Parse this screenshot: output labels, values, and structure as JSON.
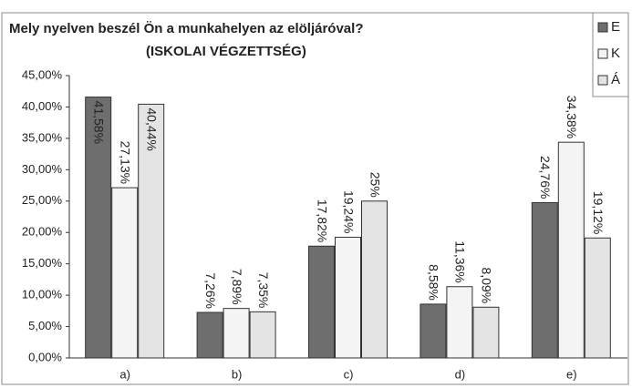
{
  "chart_data": {
    "type": "bar",
    "title": "Mely nyelven beszél Ön a munkahelyen az elöljáróval?",
    "subtitle": "(ISKOLAI VÉGZETTSÉG)",
    "categories": [
      "a)",
      "b)",
      "c)",
      "d)",
      "e)"
    ],
    "series": [
      {
        "name": "E",
        "color": "#6e6e6e",
        "values": [
          41.58,
          7.26,
          17.82,
          8.58,
          24.76
        ],
        "value_labels": [
          "41,58%",
          "7,26%",
          "17,82%",
          "8,58%",
          "24,76%"
        ]
      },
      {
        "name": "K",
        "color": "#f4f4f4",
        "values": [
          27.13,
          7.89,
          19.24,
          11.36,
          34.38
        ],
        "value_labels": [
          "27,13%",
          "7,89%",
          "19,24%",
          "11,36%",
          "34,38%"
        ]
      },
      {
        "name": "Á",
        "color": "#e4e4e4",
        "values": [
          40.44,
          7.35,
          25,
          8.09,
          19.12
        ],
        "value_labels": [
          "40,44%",
          "7,35%",
          "25%",
          "8,09%",
          "19,12%"
        ]
      }
    ],
    "ylim": [
      0,
      45
    ],
    "yticks": [
      {
        "value": 0,
        "label": "0,00%"
      },
      {
        "value": 5,
        "label": "5,00%"
      },
      {
        "value": 10,
        "label": "10,00%"
      },
      {
        "value": 15,
        "label": "15,00%"
      },
      {
        "value": 20,
        "label": "20,00%"
      },
      {
        "value": 25,
        "label": "25,00%"
      },
      {
        "value": 30,
        "label": "30,00%"
      },
      {
        "value": 35,
        "label": "35,00%"
      },
      {
        "value": 40,
        "label": "40,00%"
      },
      {
        "value": 45,
        "label": "45,00%"
      }
    ],
    "grid": false
  }
}
